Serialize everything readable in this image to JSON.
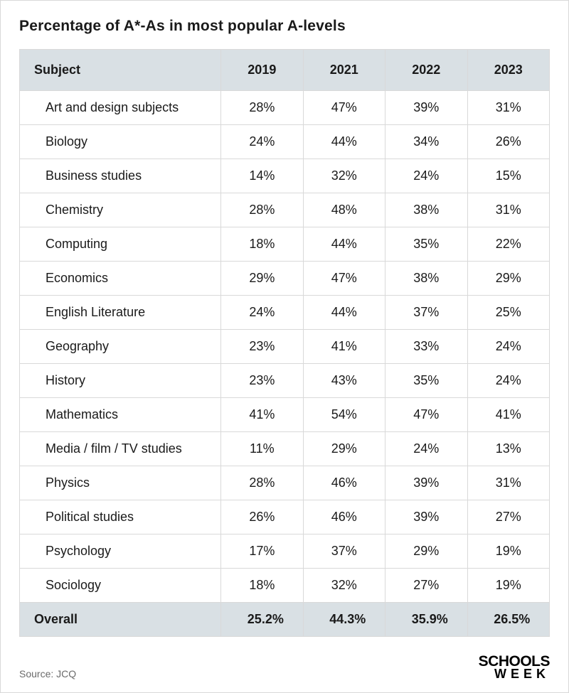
{
  "title": "Percentage of A*-As in most popular A-levels",
  "columns": [
    "Subject",
    "2019",
    "2021",
    "2022",
    "2023"
  ],
  "rows": [
    {
      "subject": "Art and design subjects",
      "y2019": "28%",
      "y2021": "47%",
      "y2022": "39%",
      "y2023": "31%"
    },
    {
      "subject": "Biology",
      "y2019": "24%",
      "y2021": "44%",
      "y2022": "34%",
      "y2023": "26%"
    },
    {
      "subject": "Business studies",
      "y2019": "14%",
      "y2021": "32%",
      "y2022": "24%",
      "y2023": "15%"
    },
    {
      "subject": "Chemistry",
      "y2019": "28%",
      "y2021": "48%",
      "y2022": "38%",
      "y2023": "31%"
    },
    {
      "subject": "Computing",
      "y2019": "18%",
      "y2021": "44%",
      "y2022": "35%",
      "y2023": "22%"
    },
    {
      "subject": "Economics",
      "y2019": "29%",
      "y2021": "47%",
      "y2022": "38%",
      "y2023": "29%"
    },
    {
      "subject": "English Literature",
      "y2019": "24%",
      "y2021": "44%",
      "y2022": "37%",
      "y2023": "25%"
    },
    {
      "subject": "Geography",
      "y2019": "23%",
      "y2021": "41%",
      "y2022": "33%",
      "y2023": "24%"
    },
    {
      "subject": "History",
      "y2019": "23%",
      "y2021": "43%",
      "y2022": "35%",
      "y2023": "24%"
    },
    {
      "subject": "Mathematics",
      "y2019": "41%",
      "y2021": "54%",
      "y2022": "47%",
      "y2023": "41%"
    },
    {
      "subject": "Media / film / TV studies",
      "y2019": "11%",
      "y2021": "29%",
      "y2022": "24%",
      "y2023": "13%"
    },
    {
      "subject": "Physics",
      "y2019": "28%",
      "y2021": "46%",
      "y2022": "39%",
      "y2023": "31%"
    },
    {
      "subject": "Political studies",
      "y2019": "26%",
      "y2021": "46%",
      "y2022": "39%",
      "y2023": "27%"
    },
    {
      "subject": "Psychology",
      "y2019": "17%",
      "y2021": "37%",
      "y2022": "29%",
      "y2023": "19%"
    },
    {
      "subject": "Sociology",
      "y2019": "18%",
      "y2021": "32%",
      "y2022": "27%",
      "y2023": "19%"
    }
  ],
  "overall": {
    "label": "Overall",
    "y2019": "25.2%",
    "y2021": "44.3%",
    "y2022": "35.9%",
    "y2023": "26.5%"
  },
  "source": "Source: JCQ",
  "brand_line1": "SCHOOLS",
  "brand_line2": "WEEK",
  "styling": {
    "type": "table",
    "header_bg": "#d9e0e4",
    "border_color": "#d9d9d9",
    "text_color": "#1a1a1a",
    "source_color": "#6b6b6b",
    "background": "#ffffff",
    "title_fontsize": 21,
    "body_fontsize": 18,
    "source_fontsize": 14,
    "column_widths_pct": [
      38,
      15.5,
      15.5,
      15.5,
      15.5
    ]
  }
}
